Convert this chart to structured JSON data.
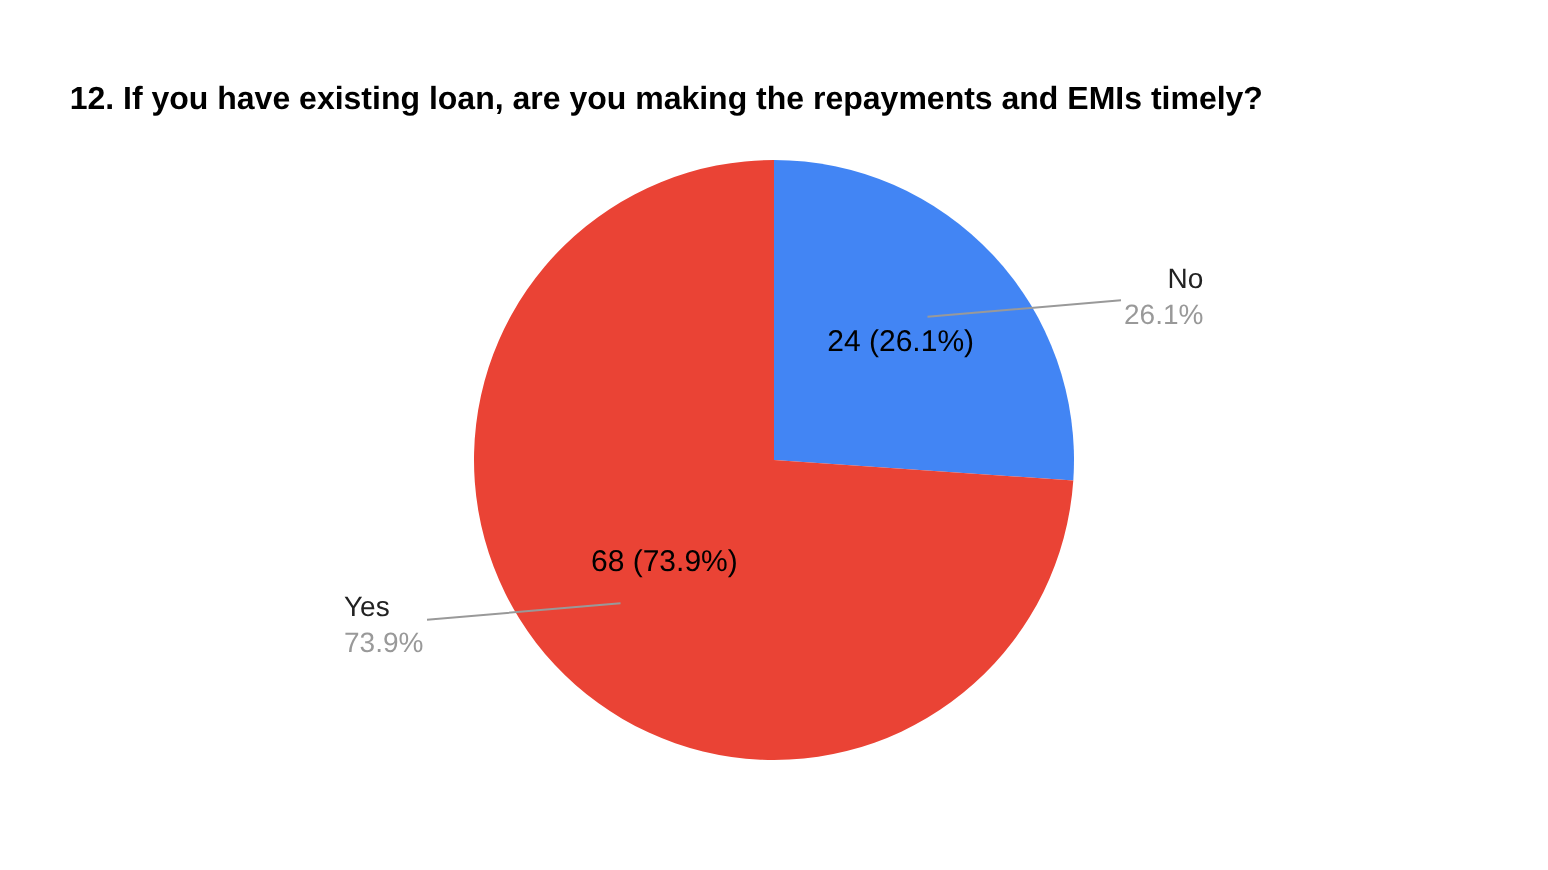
{
  "chart_data": {
    "type": "pie",
    "title": "12. If you have existing loan, are you making the repayments and EMIs timely?",
    "categories": [
      "No",
      "Yes"
    ],
    "values": [
      24,
      68
    ],
    "colors": [
      "#4285f4",
      "#ea4335"
    ],
    "value_labels": [
      "24 (26.1%)",
      "68 (73.9%)"
    ],
    "annotations": [
      "26.1%",
      "73.9%"
    ]
  }
}
